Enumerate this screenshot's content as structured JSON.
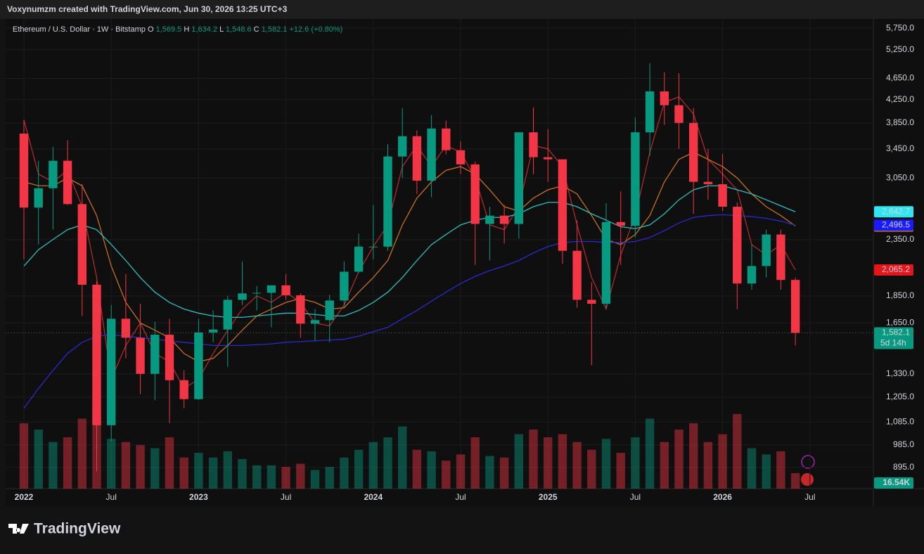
{
  "header": {
    "credit": "Voxynumzm created with TradingView.com, Jun 30, 2026 13:25 UTC+3"
  },
  "footer": {
    "logo": "TradingView"
  },
  "chart_data": {
    "type": "candlestick",
    "legend": {
      "symbol": "Ethereum / U.S. Dollar · 1W · Bitstamp",
      "keys": [
        "O",
        "H",
        "L",
        "C"
      ],
      "ohlc": [
        {
          "value": 1569.5,
          "label": "1,569.5"
        },
        {
          "value": 1634.2,
          "label": "1,634.2"
        },
        {
          "value": 1548.6,
          "label": "1,548.6"
        },
        {
          "value": 1582.1,
          "label": "1,582.1"
        }
      ],
      "change": {
        "value": 12.6,
        "label": "+12.6"
      },
      "change_pct": {
        "value": 0.8,
        "label": "(+0.80%)"
      }
    },
    "categories": [
      "2022",
      null,
      null,
      null,
      null,
      null,
      "Jul",
      null,
      null,
      null,
      null,
      null,
      "2023",
      null,
      null,
      null,
      null,
      null,
      "Jul",
      null,
      null,
      null,
      null,
      null,
      "2024",
      null,
      null,
      null,
      null,
      null,
      "Jul",
      null,
      null,
      null,
      null,
      null,
      "2025",
      null,
      null,
      null,
      null,
      null,
      "Jul",
      null,
      null,
      null,
      null,
      null,
      "2026",
      null,
      null,
      null,
      null,
      null,
      "Jul"
    ],
    "open": [
      3680,
      2690,
      2920,
      3280,
      2730,
      1940,
      1070,
      1680,
      1550,
      1330,
      1570,
      1295,
      1195,
      1585,
      1605,
      1820,
      1870,
      1875,
      1935,
      1855,
      1645,
      1670,
      1815,
      2050,
      2280,
      2280,
      3340,
      3640,
      3015,
      3760,
      3430,
      3230,
      2510,
      2600,
      2510,
      3700,
      3330,
      3300,
      2240,
      1820,
      1790,
      2530,
      2490,
      3700,
      4400,
      4150,
      3850,
      3000,
      2970,
      2700,
      1950,
      2100,
      2400,
      1980,
      null
    ],
    "high": [
      3900,
      3280,
      3480,
      3580,
      2970,
      1970,
      1780,
      2030,
      1790,
      1660,
      1680,
      1350,
      1680,
      1740,
      1850,
      2140,
      1930,
      1930,
      2030,
      1870,
      1750,
      1860,
      2140,
      2410,
      2720,
      3520,
      4100,
      3730,
      3980,
      3890,
      3560,
      3270,
      2700,
      2720,
      3680,
      4110,
      3750,
      3300,
      2550,
      1960,
      2740,
      2880,
      3940,
      4960,
      4770,
      4750,
      4100,
      3450,
      3380,
      2750,
      2300,
      2450,
      2450,
      2000,
      null
    ],
    "low": [
      2160,
      2300,
      2450,
      2720,
      1700,
      880,
      1000,
      1420,
      1220,
      1190,
      1080,
      1150,
      1190,
      1520,
      1370,
      1780,
      1740,
      1620,
      1820,
      1550,
      1530,
      1520,
      1770,
      2040,
      2160,
      2240,
      3050,
      2850,
      2810,
      3370,
      3100,
      2110,
      2150,
      2310,
      2360,
      3100,
      3000,
      2120,
      1760,
      1380,
      1750,
      2110,
      2370,
      3350,
      3820,
      3450,
      2620,
      2780,
      2650,
      1750,
      1900,
      2000,
      1900,
      1500,
      null
    ],
    "close": [
      2690,
      2920,
      3280,
      2730,
      1940,
      1070,
      1680,
      1550,
      1330,
      1570,
      1295,
      1195,
      1585,
      1605,
      1820,
      1870,
      1875,
      1935,
      1855,
      1645,
      1670,
      1815,
      2050,
      2280,
      2280,
      3340,
      3640,
      3015,
      3760,
      3430,
      3230,
      2510,
      2600,
      2510,
      3700,
      3330,
      3300,
      2240,
      1820,
      1790,
      2530,
      2490,
      3700,
      4400,
      4150,
      3850,
      3000,
      2970,
      2700,
      1950,
      2100,
      2400,
      1980,
      1582.1,
      null
    ],
    "volume": [
      420,
      380,
      300,
      330,
      450,
      520,
      320,
      300,
      280,
      260,
      330,
      200,
      230,
      200,
      240,
      190,
      150,
      150,
      140,
      160,
      120,
      140,
      200,
      250,
      300,
      330,
      400,
      250,
      240,
      180,
      220,
      330,
      210,
      200,
      350,
      380,
      330,
      350,
      300,
      250,
      320,
      230,
      330,
      450,
      300,
      380,
      420,
      300,
      350,
      480,
      260,
      220,
      240,
      100,
      null
    ],
    "volume_lim": [
      0,
      520
    ],
    "volume_badge": "16.54K",
    "up_color": "#089981",
    "down_color": "#f23645",
    "moving_averages": [
      {
        "color": "#b22a2a",
        "badge_color": "#e5151b",
        "badge_text": "#ffffff",
        "label": {
          "value": 2065.2,
          "label": "2,065.2"
        },
        "values": [
          3900,
          3100,
          3000,
          3150,
          2700,
          2000,
          1300,
          1500,
          1650,
          1450,
          1400,
          1250,
          1300,
          1450,
          1600,
          1750,
          1850,
          1800,
          1880,
          1800,
          1650,
          1630,
          1780,
          2050,
          2280,
          2500,
          3200,
          3500,
          3200,
          3500,
          3400,
          3050,
          2500,
          2450,
          2700,
          3500,
          3450,
          3200,
          2500,
          2000,
          1750,
          2200,
          2600,
          3400,
          4200,
          4300,
          4000,
          3300,
          3100,
          2900,
          2300,
          2200,
          2300,
          2065.2,
          null
        ]
      },
      {
        "color": "#c8701e",
        "badge_color": "#ff8c1a",
        "badge_text": "#ffffff",
        "label": {
          "value": 2487.6,
          "label": "2,487.6"
        },
        "values": [
          3000,
          2950,
          2950,
          3050,
          2950,
          2600,
          2100,
          1800,
          1650,
          1600,
          1550,
          1450,
          1400,
          1420,
          1500,
          1600,
          1700,
          1750,
          1800,
          1830,
          1800,
          1750,
          1760,
          1880,
          2000,
          2150,
          2500,
          2800,
          3000,
          3150,
          3200,
          3100,
          2900,
          2700,
          2650,
          2800,
          2900,
          2950,
          2850,
          2600,
          2350,
          2300,
          2400,
          2600,
          3000,
          3300,
          3400,
          3300,
          3200,
          3050,
          2850,
          2700,
          2600,
          2487.6,
          null
        ]
      },
      {
        "color": "#2bbfbf",
        "badge_color": "#2ee6f0",
        "badge_text": "#000000",
        "label": {
          "value": 2642.7,
          "label": "2,642.7"
        },
        "values": [
          2100,
          2250,
          2350,
          2450,
          2500,
          2450,
          2300,
          2150,
          2000,
          1880,
          1800,
          1750,
          1720,
          1700,
          1690,
          1690,
          1700,
          1710,
          1720,
          1720,
          1710,
          1700,
          1700,
          1740,
          1800,
          1880,
          2000,
          2150,
          2300,
          2400,
          2500,
          2550,
          2580,
          2580,
          2620,
          2700,
          2750,
          2750,
          2700,
          2620,
          2550,
          2480,
          2460,
          2500,
          2620,
          2780,
          2900,
          2950,
          2950,
          2900,
          2850,
          2780,
          2710,
          2642.7,
          null
        ]
      },
      {
        "color": "#2a2ad0",
        "badge_color": "#1a1aff",
        "badge_text": "#ffffff",
        "label": {
          "value": 2496.5,
          "label": "2,496.5"
        },
        "values": [
          1150,
          1250,
          1350,
          1450,
          1520,
          1560,
          1570,
          1560,
          1550,
          1540,
          1530,
          1520,
          1510,
          1500,
          1500,
          1500,
          1505,
          1510,
          1520,
          1525,
          1530,
          1535,
          1540,
          1560,
          1590,
          1620,
          1680,
          1740,
          1810,
          1880,
          1950,
          2010,
          2060,
          2100,
          2150,
          2220,
          2280,
          2320,
          2330,
          2330,
          2320,
          2320,
          2330,
          2370,
          2440,
          2520,
          2580,
          2600,
          2610,
          2600,
          2590,
          2570,
          2540,
          2496.5,
          null
        ]
      }
    ],
    "last_price": {
      "value": 1582.1,
      "label": "1,582.1"
    },
    "countdown": "5d 14h",
    "log_scale": true,
    "grid": true,
    "ylim": [
      818,
      5980
    ],
    "yticks": [
      {
        "value": 895,
        "label": "895.0"
      },
      {
        "value": 985,
        "label": "985.0"
      },
      {
        "value": 1085,
        "label": "1,085.0"
      },
      {
        "value": 1205,
        "label": "1,205.0"
      },
      {
        "value": 1330,
        "label": "1,330.0"
      },
      {
        "value": 1650,
        "label": "1,650.0"
      },
      {
        "value": 1850,
        "label": "1,850.0"
      },
      {
        "value": 2350,
        "label": "2,350.0"
      },
      {
        "value": 3050,
        "label": "3,050.0"
      },
      {
        "value": 3450,
        "label": "3,450.0"
      },
      {
        "value": 3850,
        "label": "3,850.0"
      },
      {
        "value": 4250,
        "label": "4,250.0"
      },
      {
        "value": 4650,
        "label": "4,650.0"
      },
      {
        "value": 5250,
        "label": "5,250.0"
      },
      {
        "value": 5750,
        "label": "5,750.0"
      }
    ]
  }
}
